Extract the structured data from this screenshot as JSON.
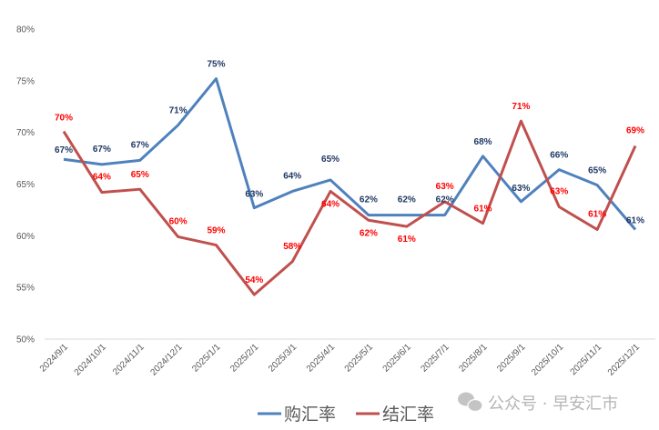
{
  "chart_data": {
    "type": "line",
    "title": "",
    "xlabel": "",
    "ylabel": "",
    "ylim": [
      50,
      80
    ],
    "y_ticks": [
      "50%",
      "55%",
      "60%",
      "65%",
      "70%",
      "75%",
      "80%"
    ],
    "grid": false,
    "legend_placement": "bottom",
    "categories": [
      "2024/9/1",
      "2024/10/1",
      "2024/11/1",
      "2024/12/1",
      "2025/1/1",
      "2025/2/1",
      "2025/3/1",
      "2025/4/1",
      "2025/5/1",
      "2025/6/1",
      "2025/7/1",
      "2025/8/1",
      "2025/9/1",
      "2025/10/1",
      "2025/11/1",
      "2025/12/1"
    ],
    "series": [
      {
        "name": "购汇率",
        "color": "#4f81bd",
        "label_color": "#1f3864",
        "values": [
          67.4,
          66.9,
          67.3,
          70.7,
          75.2,
          62.7,
          64.3,
          65.4,
          62.0,
          62.0,
          62.0,
          67.7,
          63.3,
          66.4,
          64.9,
          60.6
        ],
        "labels": [
          "67%",
          "67%",
          "67%",
          "71%",
          "75%",
          "63%",
          "64%",
          "65%",
          "62%",
          "62%",
          "62%",
          "68%",
          "63%",
          "66%",
          "65%",
          "61%"
        ]
      },
      {
        "name": "结汇率",
        "color": "#c0504d",
        "label_color": "#ff0000",
        "values": [
          70.1,
          64.2,
          64.5,
          59.9,
          59.1,
          54.3,
          57.5,
          64.3,
          61.5,
          60.9,
          63.3,
          61.2,
          71.1,
          62.8,
          60.6,
          68.7
        ],
        "labels": [
          "70%",
          "64%",
          "65%",
          "60%",
          "59%",
          "54%",
          "58%",
          "64%",
          "62%",
          "61%",
          "63%",
          "61%",
          "71%",
          "63%",
          "61%",
          "69%"
        ]
      }
    ]
  },
  "watermark": {
    "text": "公众号 · 早安汇市",
    "icon": "wechat-icon"
  }
}
